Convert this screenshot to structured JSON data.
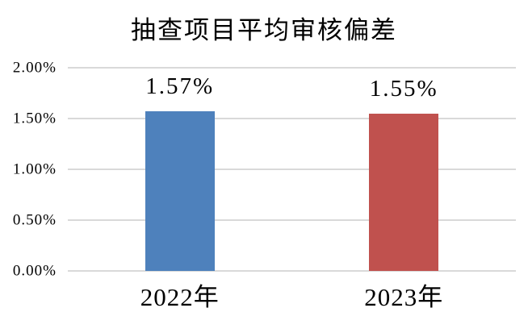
{
  "title": "抽查项目平均审核偏差",
  "colors": {
    "background": "#FFFFFF",
    "gridline": "#D9D9D9",
    "text": "#000000",
    "bar_2022": "#4E81BC",
    "bar_2023": "#C0514E"
  },
  "chart_data": {
    "type": "bar",
    "title": "抽查项目平均审核偏差",
    "categories": [
      "2022年",
      "2023年"
    ],
    "values": [
      1.57,
      1.55
    ],
    "value_labels": [
      "1.57%",
      "1.55%"
    ],
    "series_colors": [
      "#4E81BC",
      "#C0514E"
    ],
    "xlabel": "",
    "ylabel": "",
    "ylim": [
      0,
      2
    ],
    "ytick_interval": 0.5,
    "ytick_labels": [
      "0.00%",
      "0.50%",
      "1.00%",
      "1.50%",
      "2.00%"
    ],
    "grid": true,
    "legend": false,
    "data_labels": true
  }
}
